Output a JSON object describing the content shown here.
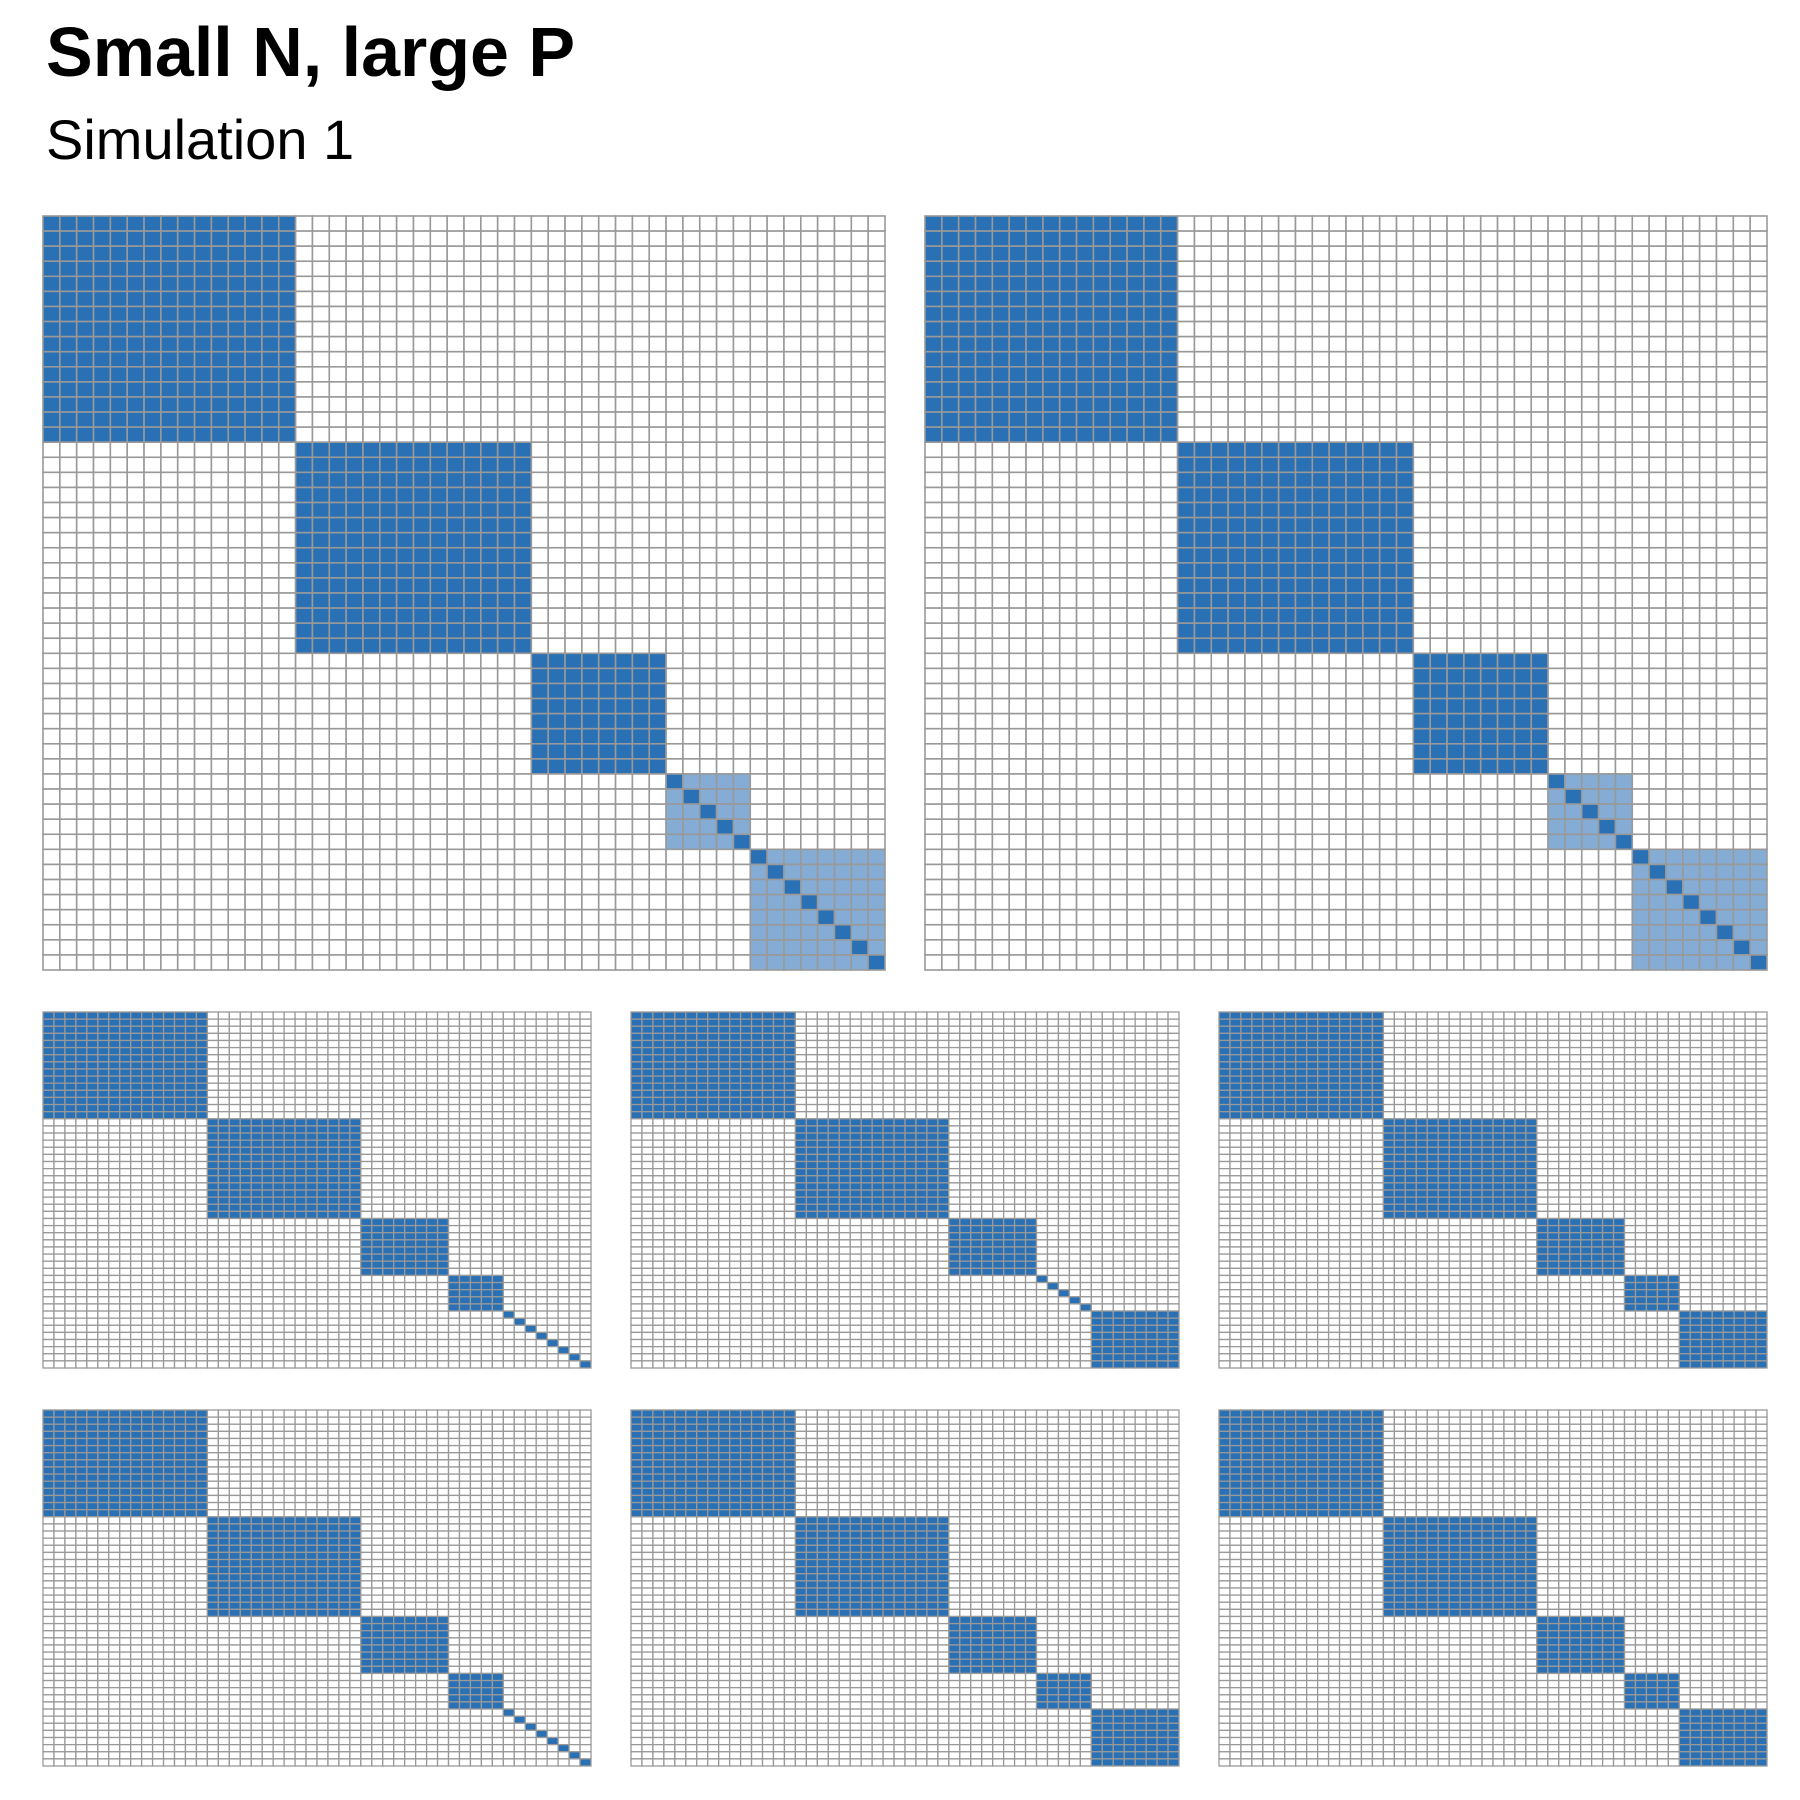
{
  "header": {
    "title": "Small N, large P",
    "subtitle": "Simulation 1"
  },
  "colors": {
    "cell_border": "#999999",
    "empty_fill": "#ffffff",
    "dark_fill": "#2a70b4",
    "light_fill": "#84acd4"
  },
  "chart_data": [
    {
      "type": "heatmap",
      "label": "large-left",
      "n": 50,
      "blocks": [
        {
          "start": 0,
          "size": 15,
          "style": "dark"
        },
        {
          "start": 15,
          "size": 14,
          "style": "dark"
        },
        {
          "start": 29,
          "size": 8,
          "style": "dark"
        },
        {
          "start": 37,
          "size": 5,
          "style": "light_diag"
        },
        {
          "start": 42,
          "size": 8,
          "style": "light_diag"
        }
      ]
    },
    {
      "type": "heatmap",
      "label": "large-right",
      "n": 50,
      "blocks": [
        {
          "start": 0,
          "size": 15,
          "style": "dark"
        },
        {
          "start": 15,
          "size": 14,
          "style": "dark"
        },
        {
          "start": 29,
          "size": 8,
          "style": "dark"
        },
        {
          "start": 37,
          "size": 5,
          "style": "light_diag"
        },
        {
          "start": 42,
          "size": 8,
          "style": "light_diag"
        }
      ]
    },
    {
      "type": "heatmap",
      "label": "small-1",
      "n": 50,
      "blocks": [
        {
          "start": 0,
          "size": 15,
          "style": "dark"
        },
        {
          "start": 15,
          "size": 14,
          "style": "dark"
        },
        {
          "start": 29,
          "size": 8,
          "style": "dark"
        },
        {
          "start": 37,
          "size": 5,
          "style": "dark"
        },
        {
          "start": 42,
          "size": 8,
          "style": "diag"
        }
      ]
    },
    {
      "type": "heatmap",
      "label": "small-2",
      "n": 50,
      "blocks": [
        {
          "start": 0,
          "size": 15,
          "style": "dark"
        },
        {
          "start": 15,
          "size": 14,
          "style": "dark"
        },
        {
          "start": 29,
          "size": 8,
          "style": "dark"
        },
        {
          "start": 37,
          "size": 5,
          "style": "diag"
        },
        {
          "start": 42,
          "size": 8,
          "style": "dark"
        }
      ]
    },
    {
      "type": "heatmap",
      "label": "small-3",
      "n": 50,
      "blocks": [
        {
          "start": 0,
          "size": 15,
          "style": "dark"
        },
        {
          "start": 15,
          "size": 14,
          "style": "dark"
        },
        {
          "start": 29,
          "size": 8,
          "style": "dark"
        },
        {
          "start": 37,
          "size": 5,
          "style": "dark"
        },
        {
          "start": 42,
          "size": 8,
          "style": "dark"
        }
      ]
    },
    {
      "type": "heatmap",
      "label": "small-4",
      "n": 50,
      "blocks": [
        {
          "start": 0,
          "size": 15,
          "style": "dark"
        },
        {
          "start": 15,
          "size": 14,
          "style": "dark"
        },
        {
          "start": 29,
          "size": 8,
          "style": "dark"
        },
        {
          "start": 37,
          "size": 5,
          "style": "dark"
        },
        {
          "start": 42,
          "size": 8,
          "style": "diag"
        }
      ]
    },
    {
      "type": "heatmap",
      "label": "small-5",
      "n": 50,
      "blocks": [
        {
          "start": 0,
          "size": 15,
          "style": "dark"
        },
        {
          "start": 15,
          "size": 14,
          "style": "dark"
        },
        {
          "start": 29,
          "size": 8,
          "style": "dark"
        },
        {
          "start": 37,
          "size": 5,
          "style": "dark"
        },
        {
          "start": 42,
          "size": 8,
          "style": "dark"
        }
      ]
    },
    {
      "type": "heatmap",
      "label": "small-6",
      "n": 50,
      "blocks": [
        {
          "start": 0,
          "size": 15,
          "style": "dark"
        },
        {
          "start": 15,
          "size": 14,
          "style": "dark"
        },
        {
          "start": 29,
          "size": 8,
          "style": "dark"
        },
        {
          "start": 37,
          "size": 5,
          "style": "dark"
        },
        {
          "start": 42,
          "size": 8,
          "style": "dark"
        }
      ]
    }
  ]
}
